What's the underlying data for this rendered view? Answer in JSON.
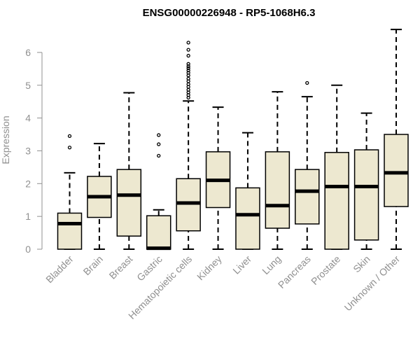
{
  "chart_data": {
    "type": "box",
    "title": "ENSG00000226948 - RP5-1068H6.3",
    "ylabel": "Expression",
    "xlabel": "",
    "ylim": [
      0,
      6.8
    ],
    "yticks": [
      0,
      1,
      2,
      3,
      4,
      5,
      6
    ],
    "box_fill": "#EDE8D0",
    "box_stroke": "#000000",
    "categories": [
      "Bladder",
      "Brain",
      "Breast",
      "Gastric",
      "Hematopoietic cells",
      "Kidney",
      "Liver",
      "Lung",
      "Pancreas",
      "Prostate",
      "Skin",
      "Unknown / Other"
    ],
    "boxes": [
      {
        "min": 0.0,
        "q1": 0.0,
        "median": 0.78,
        "q3": 1.1,
        "max": 2.33,
        "outliers": [
          3.1,
          3.45
        ]
      },
      {
        "min": 0.0,
        "q1": 0.97,
        "median": 1.6,
        "q3": 2.22,
        "max": 3.22,
        "outliers": []
      },
      {
        "min": 0.0,
        "q1": 0.4,
        "median": 1.65,
        "q3": 2.43,
        "max": 4.77,
        "outliers": []
      },
      {
        "min": 0.0,
        "q1": 0.0,
        "median": 0.03,
        "q3": 1.02,
        "max": 1.2,
        "outliers": [
          2.85,
          3.2,
          3.48
        ]
      },
      {
        "min": 0.0,
        "q1": 0.56,
        "median": 1.41,
        "q3": 2.15,
        "max": 4.52,
        "outliers": [
          4.62,
          4.7,
          4.78,
          4.86,
          4.95,
          5.03,
          5.12,
          5.2,
          5.3,
          5.38,
          5.45,
          5.52,
          5.58,
          5.65,
          5.9,
          6.08,
          6.3
        ]
      },
      {
        "min": 0.0,
        "q1": 1.27,
        "median": 2.1,
        "q3": 2.97,
        "max": 4.33,
        "outliers": []
      },
      {
        "min": 0.0,
        "q1": 0.0,
        "median": 1.05,
        "q3": 1.87,
        "max": 3.55,
        "outliers": []
      },
      {
        "min": 0.0,
        "q1": 0.64,
        "median": 1.33,
        "q3": 2.97,
        "max": 4.8,
        "outliers": []
      },
      {
        "min": 0.0,
        "q1": 0.77,
        "median": 1.77,
        "q3": 2.43,
        "max": 4.65,
        "outliers": [
          5.07
        ]
      },
      {
        "min": 0.0,
        "q1": 0.0,
        "median": 1.91,
        "q3": 2.95,
        "max": 5.0,
        "outliers": []
      },
      {
        "min": 0.0,
        "q1": 0.28,
        "median": 1.91,
        "q3": 3.03,
        "max": 4.15,
        "outliers": []
      },
      {
        "min": 0.0,
        "q1": 1.3,
        "median": 2.33,
        "q3": 3.5,
        "max": 6.7,
        "outliers": []
      }
    ]
  }
}
